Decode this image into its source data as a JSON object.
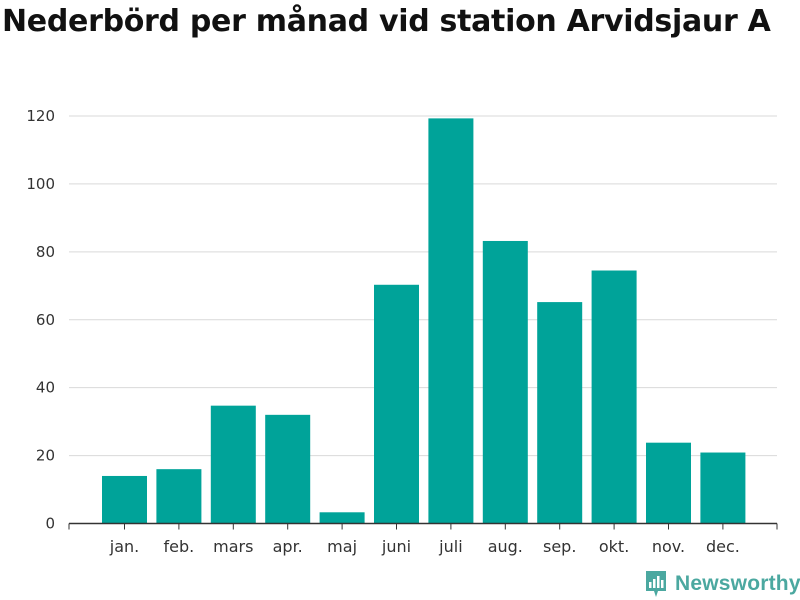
{
  "chart_data": {
    "type": "bar",
    "title": "Nederbörd per månad vid station Arvidsjaur A",
    "categories": [
      "jan.",
      "feb.",
      "mars",
      "apr.",
      "maj",
      "juni",
      "juli",
      "aug.",
      "sep.",
      "okt.",
      "nov.",
      "dec."
    ],
    "values": [
      14,
      16,
      34.7,
      32,
      3.3,
      70.3,
      119.3,
      83.2,
      65.2,
      74.5,
      23.8,
      20.9
    ],
    "xlabel": "",
    "ylabel": "",
    "ylim": [
      0,
      120
    ],
    "yticks": [
      0,
      20,
      40,
      60,
      80,
      100,
      120
    ],
    "grid": true,
    "bar_color": "#00a399"
  },
  "brand": {
    "name": "Newsworthy",
    "icon": "newsworthy-logo-icon",
    "color": "#4ba8a0"
  }
}
